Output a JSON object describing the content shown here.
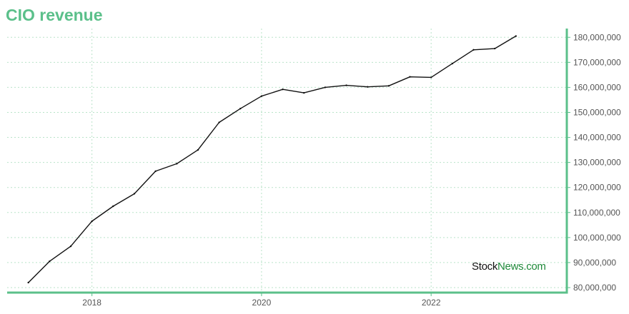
{
  "title": "CIO revenue",
  "colors": {
    "accent": "#5bc08a",
    "grid": "#b9e3c9",
    "line": "#111111",
    "tick_text": "#555555",
    "watermark_dark": "#111111",
    "watermark_green": "#1f8a3a"
  },
  "watermark": {
    "part1": "Stock",
    "part2": "News.com"
  },
  "chart_data": {
    "type": "line",
    "title": "CIO revenue",
    "xlabel": "",
    "ylabel": "",
    "xlim": [
      2017.0,
      2023.6
    ],
    "ylim": [
      78000000,
      183500000
    ],
    "grid": true,
    "y_axis_side": "right",
    "x_ticks": [
      2018,
      2020,
      2022
    ],
    "x_tick_labels": [
      "2018",
      "2020",
      "2022"
    ],
    "y_ticks": [
      80000000,
      90000000,
      100000000,
      110000000,
      120000000,
      130000000,
      140000000,
      150000000,
      160000000,
      170000000,
      180000000
    ],
    "y_tick_labels": [
      "80,000,000",
      "90,000,000",
      "100,000,000",
      "110,000,000",
      "120,000,000",
      "130,000,000",
      "140,000,000",
      "150,000,000",
      "160,000,000",
      "170,000,000",
      "180,000,000"
    ],
    "series": [
      {
        "x": [
          2017.25,
          2017.5,
          2017.75,
          2018.0,
          2018.25,
          2018.5,
          2018.75,
          2019.0,
          2019.25,
          2019.5,
          2019.75,
          2020.0,
          2020.25,
          2020.5,
          2020.75,
          2021.0,
          2021.25,
          2021.5,
          2021.75,
          2022.0,
          2022.25,
          2022.5,
          2022.75,
          2023.0
        ],
        "values": [
          82000000,
          90500000,
          96500000,
          106500000,
          112500000,
          117500000,
          126500000,
          129500000,
          135000000,
          146000000,
          151500000,
          156500000,
          159200000,
          157800000,
          160000000,
          160800000,
          160200000,
          160600000,
          164200000,
          164000000,
          169500000,
          175000000,
          175500000,
          180500000
        ]
      }
    ]
  }
}
